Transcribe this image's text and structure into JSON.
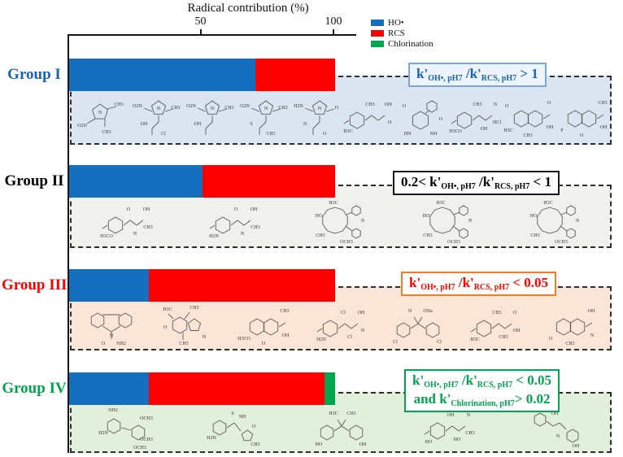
{
  "chart_data": {
    "type": "bar",
    "orientation": "horizontal",
    "stacked": true,
    "title": "Radical contribution (%)",
    "axis": {
      "label": "Radical contribution (%)",
      "ticks": [
        50,
        100
      ],
      "range": [
        0,
        100
      ],
      "position": "top"
    },
    "legend_position": "top-right",
    "legend": [
      {
        "label": "HO•",
        "color": "#1470bf"
      },
      {
        "label": "RCS",
        "color": "#fe0000"
      },
      {
        "label": "Chlorination",
        "color": "#00a550"
      }
    ],
    "categories": [
      "Group I",
      "Group II",
      "Group III",
      "Group IV"
    ],
    "series": [
      {
        "name": "HO•",
        "values": [
          70,
          50,
          30,
          30
        ]
      },
      {
        "name": "RCS",
        "values": [
          30,
          50,
          70,
          66
        ]
      },
      {
        "name": "Chlorination",
        "values": [
          0,
          0,
          0,
          4
        ]
      }
    ]
  },
  "groups": [
    {
      "label": "Group I",
      "label_color": "#1464b4",
      "panel_color": "#dbe5f1",
      "annotation": {
        "border_color": "#7ba7d7",
        "bg_color": "#eef4fb",
        "text_color": "#1464b4",
        "lines": [
          [
            {
              "t": "k'",
              "sub": false
            },
            {
              "t": "OH•, pH7",
              "sub": true
            },
            {
              "t": " /k'",
              "sub": false
            },
            {
              "t": "RCS, pH7",
              "sub": true
            },
            {
              "t": " > 1",
              "sub": false
            }
          ]
        ]
      },
      "molecules": [
        {
          "kind": "pent",
          "atoms": [
            "O2N",
            "N",
            "CH3",
            "CH3",
            ""
          ]
        },
        {
          "kind": "pentChain",
          "atoms": [
            "O2N",
            "N",
            "CH3",
            "OH",
            "Cl"
          ]
        },
        {
          "kind": "pentChain",
          "atoms": [
            "O2N",
            "N",
            "CH3",
            "OH",
            ""
          ]
        },
        {
          "kind": "pentChain",
          "atoms": [
            "O2N",
            "N",
            "CH3",
            "S",
            "CH3"
          ]
        },
        {
          "kind": "pentChain",
          "atoms": [
            "H2N",
            "N",
            "O",
            "N",
            "O"
          ]
        },
        {
          "kind": "hexChain",
          "atoms": [
            "H3C",
            "CH3",
            "OH",
            "O",
            ""
          ]
        },
        {
          "kind": "hexRing",
          "atoms": [
            "O",
            "O",
            "HN",
            "NH",
            ""
          ]
        },
        {
          "kind": "hexChain",
          "atoms": [
            "H3CO",
            "CH3",
            "N",
            "HCl",
            "OH"
          ]
        },
        {
          "kind": "fused6",
          "atoms": [
            "O",
            "H3C",
            "O",
            "OH",
            "CH3"
          ]
        },
        {
          "kind": "fused6",
          "atoms": [
            "",
            "F",
            "CH3",
            "OH",
            "O"
          ]
        }
      ]
    },
    {
      "label": "Group II",
      "label_color": "#000000",
      "panel_color": "#f0f0ee",
      "annotation": {
        "border_color": "#1a1a1a",
        "bg_color": "#ffffff",
        "text_color": "#000000",
        "lines": [
          [
            {
              "t": "0.2< k'",
              "sub": false
            },
            {
              "t": "OH•, pH7",
              "sub": true
            },
            {
              "t": " /k'",
              "sub": false
            },
            {
              "t": "RCS, pH7",
              "sub": true
            },
            {
              "t": " < 1",
              "sub": false
            }
          ]
        ]
      },
      "molecules": [
        {
          "kind": "hexChain",
          "atoms": [
            "H3CO",
            "O",
            "OH",
            "CH3",
            "N"
          ]
        },
        {
          "kind": "hexChain",
          "atoms": [
            "H2N",
            "O",
            "OH",
            "CH3",
            "N"
          ]
        },
        {
          "kind": "macro",
          "atoms": [
            "H3C",
            "HO",
            "N",
            "OCH3",
            "CH3"
          ]
        },
        {
          "kind": "macro",
          "atoms": [
            "H3C",
            "HO",
            "N",
            "OCH3",
            "CH3"
          ]
        },
        {
          "kind": "macro",
          "atoms": [
            "H3C",
            "HO",
            "N",
            "OCH3",
            "CH3"
          ]
        }
      ]
    },
    {
      "label": "Group III",
      "label_color": "#fe0000",
      "panel_color": "#fbe5d6",
      "annotation": {
        "border_color": "#ed7d31",
        "bg_color": "#fffdf9",
        "text_color": "#fe0000",
        "lines": [
          [
            {
              "t": "k'",
              "sub": false
            },
            {
              "t": "OH•, pH7",
              "sub": true
            },
            {
              "t": " /k'",
              "sub": false
            },
            {
              "t": "RCS, pH7",
              "sub": true
            },
            {
              "t": " < 0.05",
              "sub": false
            }
          ]
        ]
      },
      "molecules": [
        {
          "kind": "tricyclic",
          "atoms": [
            "N",
            "O",
            "NH2",
            "",
            ""
          ]
        },
        {
          "kind": "purine",
          "atoms": [
            "H3C",
            "CH3",
            "CH3",
            "O",
            "N"
          ]
        },
        {
          "kind": "fused6",
          "atoms": [
            "",
            "H3CO",
            "CH3",
            "OH",
            "O"
          ]
        },
        {
          "kind": "hexChain",
          "atoms": [
            "H2N",
            "Cl",
            "OH",
            "N",
            "Cl"
          ]
        },
        {
          "kind": "biphenyl",
          "atoms": [
            "Cl",
            "Cl",
            "N",
            "ONa",
            ""
          ]
        },
        {
          "kind": "hexChain",
          "atoms": [
            "H3C",
            "CH3",
            "O",
            "OH",
            "CH3"
          ]
        },
        {
          "kind": "fused6",
          "atoms": [
            "",
            "O",
            "OH",
            "N",
            "CH3"
          ]
        }
      ]
    },
    {
      "label": "Group IV",
      "label_color": "#00a550",
      "panel_color": "#e2efda",
      "annotation": {
        "border_color": "#00a550",
        "bg_color": "#ffffff",
        "text_color": "#00a550",
        "lines": [
          [
            {
              "t": "k'",
              "sub": false
            },
            {
              "t": "OH•, pH7",
              "sub": true
            },
            {
              "t": " /k'",
              "sub": false
            },
            {
              "t": "RCS, pH7",
              "sub": true
            },
            {
              "t": " < 0.05",
              "sub": false
            }
          ],
          [
            {
              "t": "and k'",
              "sub": false
            },
            {
              "t": "Chlorination, pH7",
              "sub": true
            },
            {
              "t": "> 0.02",
              "sub": false
            }
          ]
        ]
      },
      "molecules": [
        {
          "kind": "pyrPair",
          "atoms": [
            "NH2",
            "H2N",
            "OCH3",
            "OCH3",
            "OCH3"
          ]
        },
        {
          "kind": "sulfa",
          "atoms": [
            "H2N",
            "S",
            "NH",
            "CH3",
            "O"
          ]
        },
        {
          "kind": "biphenyl",
          "atoms": [
            "HO",
            "OH",
            "H3C",
            "CH3",
            ""
          ]
        },
        {
          "kind": "hexChain",
          "atoms": [
            "HO",
            "OH",
            "N",
            "CH3",
            "HO"
          ]
        },
        {
          "kind": "chainRing2",
          "atoms": [
            "HO",
            "OH",
            "N",
            "OH",
            ""
          ]
        }
      ]
    }
  ]
}
